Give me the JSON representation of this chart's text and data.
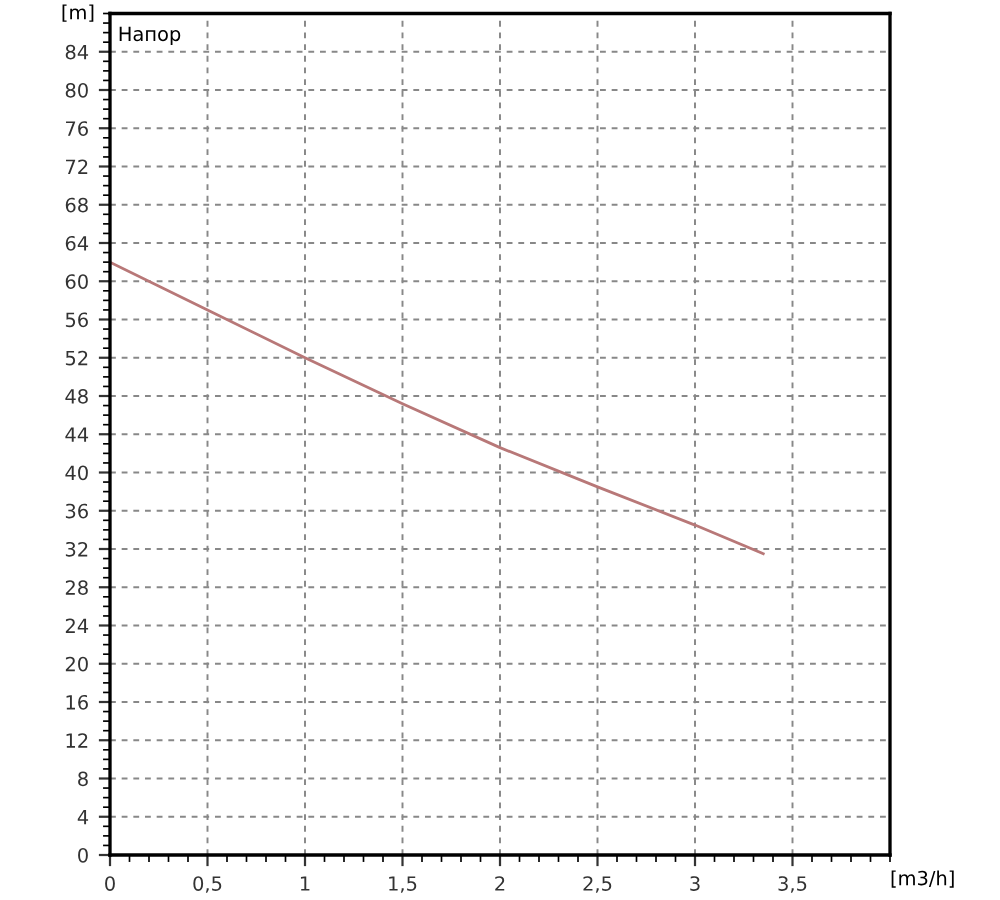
{
  "chart_data": {
    "type": "line",
    "title": "Напор",
    "xlabel": "[m3/h]",
    "ylabel": "[m]",
    "x": [
      0,
      0.5,
      1,
      1.5,
      2,
      2.5,
      3,
      3.35
    ],
    "series": [
      {
        "color": "#b87878",
        "values": [
          62,
          57,
          52,
          47.2,
          42.6,
          38.5,
          34.5,
          31.5
        ]
      }
    ],
    "xlim": [
      0,
      4
    ],
    "ylim": [
      0,
      88
    ],
    "xticks": [
      0,
      {
        "value": 0.5,
        "label": "0,5"
      },
      1,
      {
        "value": 1.5,
        "label": "1,5"
      },
      2,
      {
        "value": 2.5,
        "label": "2,5"
      },
      3,
      {
        "value": 3.5,
        "label": "3,5"
      }
    ],
    "yticks": [
      0,
      4,
      8,
      12,
      16,
      20,
      24,
      28,
      32,
      36,
      40,
      44,
      48,
      52,
      56,
      60,
      64,
      68,
      72,
      76,
      80,
      84
    ],
    "grid": true,
    "marker": "none",
    "line_style": "solid"
  }
}
